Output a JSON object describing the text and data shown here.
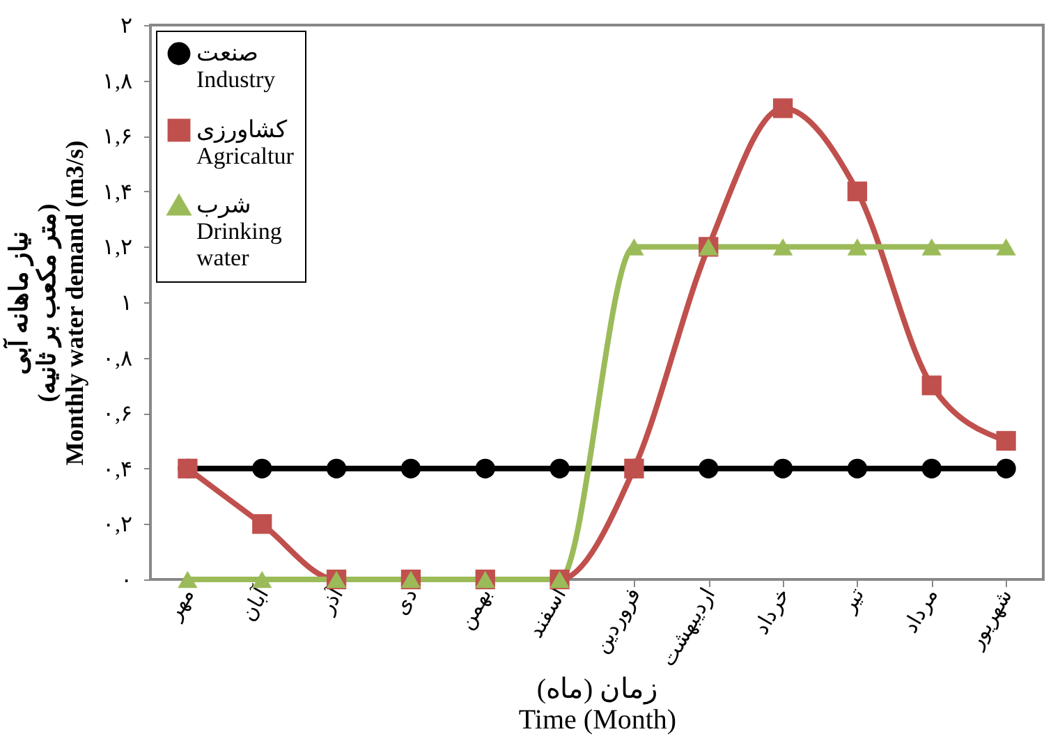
{
  "chart_data": {
    "type": "line",
    "xlabel": "زمان (ماه)\nTime (Month)",
    "ylabel": "نیاز ماهانه آبی\n(متر مکعب بر ثانیه)\nMonthly water demand (m3/s)",
    "categories": [
      "مهر",
      "آبان",
      "آذر",
      "دی",
      "بهمن",
      "اسفند",
      "فروردین",
      "اردیبهشت",
      "خرداد",
      "تیر",
      "مرداد",
      "شهریور"
    ],
    "series": [
      {
        "name": "صنعت\nIndustry",
        "color": "#000000",
        "marker": "circle",
        "values": [
          0.4,
          0.4,
          0.4,
          0.4,
          0.4,
          0.4,
          0.4,
          0.4,
          0.4,
          0.4,
          0.4,
          0.4
        ]
      },
      {
        "name": "کشاورزی\nAgricaltur",
        "color": "#c0504d",
        "marker": "square",
        "values": [
          0.4,
          0.2,
          0,
          0,
          0,
          0,
          0.4,
          1.2,
          1.7,
          1.4,
          0.7,
          0.5
        ]
      },
      {
        "name": "شرب\nDrinking\nwater",
        "color": "#9bbb59",
        "marker": "triangle",
        "values": [
          0,
          0,
          0,
          0,
          0,
          0,
          1.2,
          1.2,
          1.2,
          1.2,
          1.2,
          1.2
        ]
      }
    ],
    "ylim": [
      0,
      2
    ],
    "yticks": [
      {
        "value": 0,
        "label": "۰"
      },
      {
        "value": 0.2,
        "label": "۰,۲"
      },
      {
        "value": 0.4,
        "label": "۰,۴"
      },
      {
        "value": 0.6,
        "label": "۰,۶"
      },
      {
        "value": 0.8,
        "label": "۰,۸"
      },
      {
        "value": 1,
        "label": "۱"
      },
      {
        "value": 1.2,
        "label": "۱,۲"
      },
      {
        "value": 1.4,
        "label": "۱,۴"
      },
      {
        "value": 1.6,
        "label": "۱,۶"
      },
      {
        "value": 1.8,
        "label": "۱,۸"
      },
      {
        "value": 2,
        "label": "۲"
      }
    ],
    "legend": "top left",
    "grid": false
  }
}
